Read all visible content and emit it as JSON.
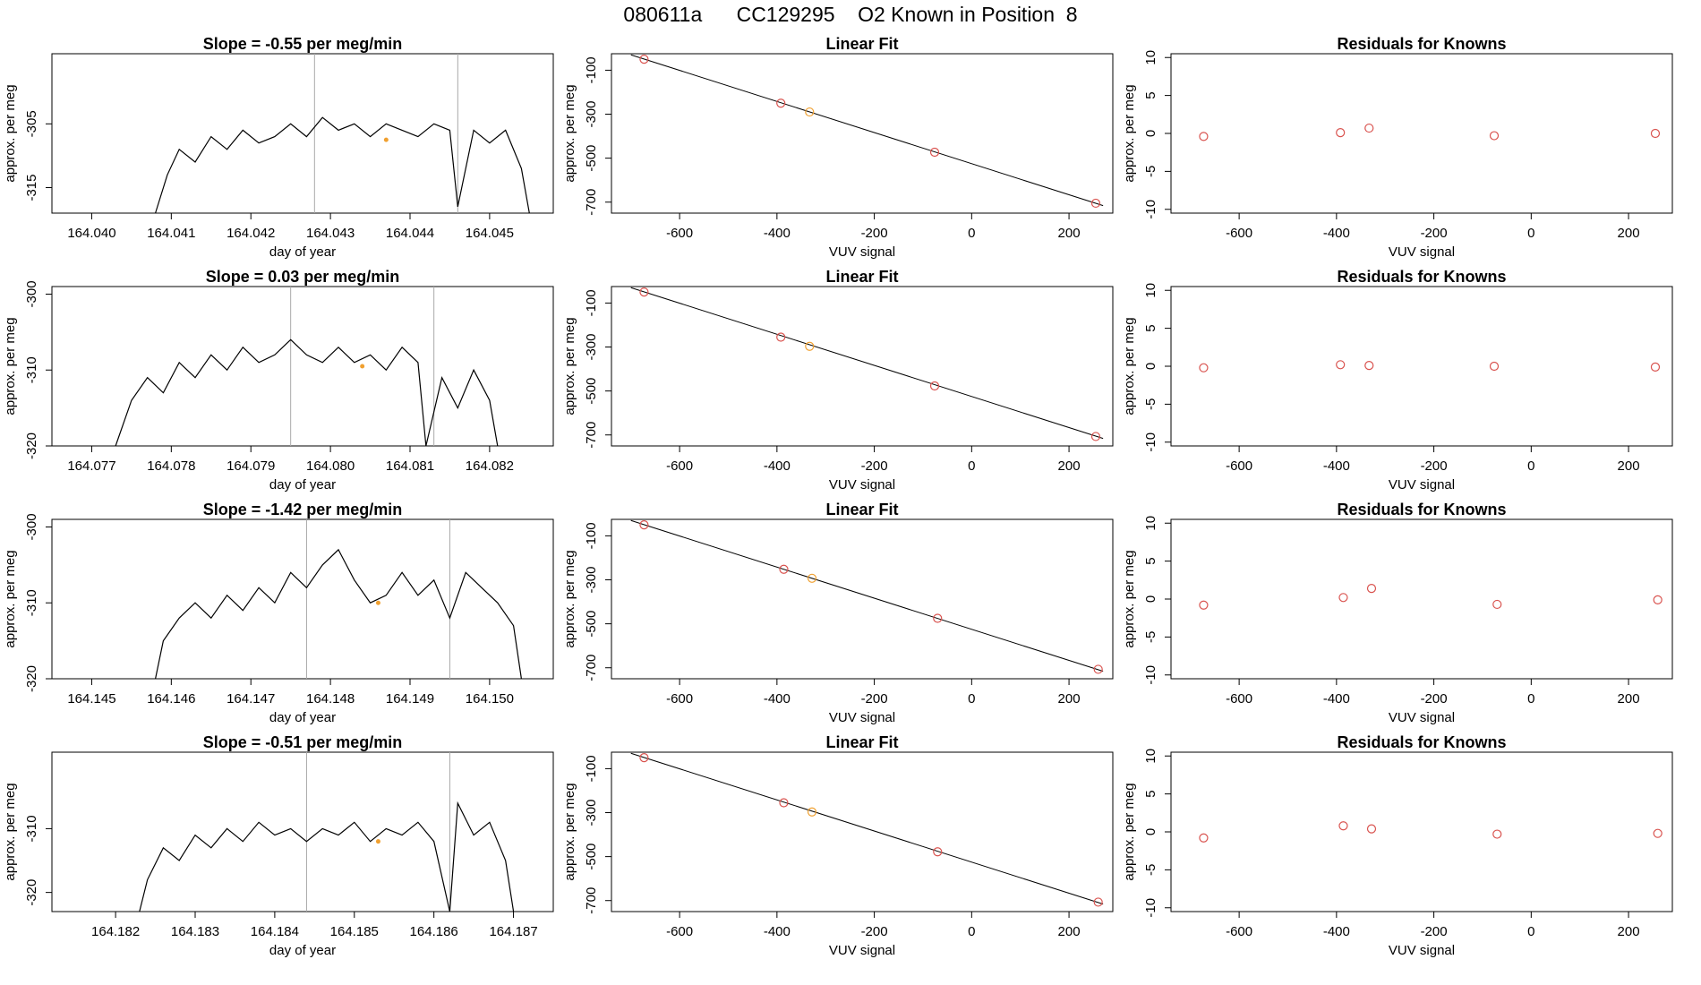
{
  "title": "080611a      CC129295    O2 Known in Position  8",
  "colors": {
    "line": "#000000",
    "frame": "#000000",
    "marker_line": "#aaaaaa",
    "point": "#d9534f",
    "highlight": "#f0a030"
  },
  "chart_data": [
    {
      "type": "line",
      "title": "Slope =  -0.55  per meg/min",
      "xlabel": "day of year",
      "ylabel": "approx. per meg",
      "xlim": [
        164.0395,
        164.0458
      ],
      "ylim": [
        -319,
        -294
      ],
      "xticks": [
        "164.040",
        "164.041",
        "164.042",
        "164.043",
        "164.044",
        "164.045"
      ],
      "yticks": [
        -315,
        -305
      ],
      "vlines": [
        164.0428,
        164.0446
      ],
      "highlight_point": {
        "x": 164.0437,
        "y": -307.5
      },
      "series": [
        {
          "x": [
            164.0408,
            164.04095,
            164.0411,
            164.0413,
            164.0415,
            164.0417,
            164.0419,
            164.0421,
            164.0423,
            164.0425,
            164.0427,
            164.0429,
            164.0431,
            164.0433,
            164.0435,
            164.0437,
            164.0439,
            164.0441,
            164.0443,
            164.0445,
            164.0446,
            164.0448,
            164.045,
            164.0452,
            164.0454,
            164.0455
          ],
          "y": [
            -319,
            -313,
            -309,
            -311,
            -307,
            -309,
            -306,
            -308,
            -307,
            -305,
            -307,
            -304,
            -306,
            -305,
            -307,
            -305,
            -306,
            -307,
            -305,
            -306,
            -318,
            -306,
            -308,
            -306,
            -312,
            -319
          ]
        }
      ]
    },
    {
      "type": "scatter",
      "title": "Linear Fit",
      "xlabel": "VUV signal",
      "ylabel": "approx. per meg",
      "xlim": [
        -740,
        290
      ],
      "ylim": [
        -750,
        -25
      ],
      "xticks": [
        -600,
        -400,
        -200,
        0,
        200
      ],
      "yticks": [
        -100,
        -300,
        -500,
        -700
      ],
      "points": [
        {
          "x": -673,
          "y": -50
        },
        {
          "x": -392,
          "y": -250
        },
        {
          "x": -333,
          "y": -290
        },
        {
          "x": -76,
          "y": -473
        },
        {
          "x": 255,
          "y": -705
        }
      ],
      "highlight_index": 2,
      "fit_line": {
        "x": [
          -700,
          270
        ],
        "y": [
          -30,
          -716
        ]
      }
    },
    {
      "type": "scatter",
      "title": "Residuals for Knowns",
      "xlabel": "VUV signal",
      "ylabel": "approx. per meg",
      "xlim": [
        -740,
        290
      ],
      "ylim": [
        -10.5,
        10.5
      ],
      "xticks": [
        -600,
        -400,
        -200,
        0,
        200
      ],
      "yticks": [
        10,
        5,
        0,
        -5,
        -10
      ],
      "points": [
        {
          "x": -673,
          "y": -0.4
        },
        {
          "x": -392,
          "y": 0.1
        },
        {
          "x": -333,
          "y": 0.7
        },
        {
          "x": -76,
          "y": -0.3
        },
        {
          "x": 255,
          "y": 0.0
        }
      ]
    },
    {
      "type": "line",
      "title": "Slope =  0.03  per meg/min",
      "xlabel": "day of year",
      "ylabel": "approx. per meg",
      "xlim": [
        164.0765,
        164.0828
      ],
      "ylim": [
        -320,
        -299
      ],
      "xticks": [
        "164.077",
        "164.078",
        "164.079",
        "164.080",
        "164.081",
        "164.082"
      ],
      "yticks": [
        -300,
        -310,
        -320
      ],
      "vlines": [
        164.0795,
        164.0813
      ],
      "highlight_point": {
        "x": 164.0804,
        "y": -309.5
      },
      "series": [
        {
          "x": [
            164.0773,
            164.0775,
            164.0777,
            164.0779,
            164.0781,
            164.0783,
            164.0785,
            164.0787,
            164.0789,
            164.0791,
            164.0793,
            164.0795,
            164.0797,
            164.0799,
            164.0801,
            164.0803,
            164.0805,
            164.0807,
            164.0809,
            164.0811,
            164.0812,
            164.0814,
            164.0816,
            164.0818,
            164.082,
            164.0821
          ],
          "y": [
            -320,
            -314,
            -311,
            -313,
            -309,
            -311,
            -308,
            -310,
            -307,
            -309,
            -308,
            -306,
            -308,
            -309,
            -307,
            -309,
            -308,
            -310,
            -307,
            -309,
            -320,
            -311,
            -315,
            -310,
            -314,
            -320
          ]
        }
      ]
    },
    {
      "type": "scatter",
      "title": "Linear Fit",
      "xlabel": "VUV signal",
      "ylabel": "approx. per meg",
      "xlim": [
        -740,
        290
      ],
      "ylim": [
        -750,
        -25
      ],
      "xticks": [
        -600,
        -400,
        -200,
        0,
        200
      ],
      "yticks": [
        -100,
        -300,
        -500,
        -700
      ],
      "points": [
        {
          "x": -673,
          "y": -50
        },
        {
          "x": -392,
          "y": -255
        },
        {
          "x": -333,
          "y": -297
        },
        {
          "x": -76,
          "y": -477
        },
        {
          "x": 255,
          "y": -707
        }
      ],
      "highlight_index": 2,
      "fit_line": {
        "x": [
          -700,
          270
        ],
        "y": [
          -30,
          -716
        ]
      }
    },
    {
      "type": "scatter",
      "title": "Residuals for Knowns",
      "xlabel": "VUV signal",
      "ylabel": "approx. per meg",
      "xlim": [
        -740,
        290
      ],
      "ylim": [
        -10.5,
        10.5
      ],
      "xticks": [
        -600,
        -400,
        -200,
        0,
        200
      ],
      "yticks": [
        10,
        5,
        0,
        -5,
        -10
      ],
      "points": [
        {
          "x": -673,
          "y": -0.2
        },
        {
          "x": -392,
          "y": 0.2
        },
        {
          "x": -333,
          "y": 0.1
        },
        {
          "x": -76,
          "y": 0.0
        },
        {
          "x": 255,
          "y": -0.1
        }
      ]
    },
    {
      "type": "line",
      "title": "Slope =  -1.42  per meg/min",
      "xlabel": "day of year",
      "ylabel": "approx. per meg",
      "xlim": [
        164.1445,
        164.1508
      ],
      "ylim": [
        -320,
        -299
      ],
      "xticks": [
        "164.145",
        "164.146",
        "164.147",
        "164.148",
        "164.149",
        "164.150"
      ],
      "yticks": [
        -300,
        -310,
        -320
      ],
      "vlines": [
        164.1477,
        164.1495
      ],
      "highlight_point": {
        "x": 164.1486,
        "y": -310
      },
      "series": [
        {
          "x": [
            164.1458,
            164.1459,
            164.1461,
            164.1463,
            164.1465,
            164.1467,
            164.1469,
            164.1471,
            164.1473,
            164.1475,
            164.1477,
            164.1479,
            164.1481,
            164.1483,
            164.1485,
            164.1487,
            164.1489,
            164.1491,
            164.1493,
            164.1495,
            164.1497,
            164.1499,
            164.1501,
            164.1503,
            164.1504
          ],
          "y": [
            -320,
            -315,
            -312,
            -310,
            -312,
            -309,
            -311,
            -308,
            -310,
            -306,
            -308,
            -305,
            -303,
            -307,
            -310,
            -309,
            -306,
            -309,
            -307,
            -312,
            -306,
            -308,
            -310,
            -313,
            -320
          ]
        }
      ]
    },
    {
      "type": "scatter",
      "title": "Linear Fit",
      "xlabel": "VUV signal",
      "ylabel": "approx. per meg",
      "xlim": [
        -740,
        290
      ],
      "ylim": [
        -750,
        -25
      ],
      "xticks": [
        -600,
        -400,
        -200,
        0,
        200
      ],
      "yticks": [
        -100,
        -300,
        -500,
        -700
      ],
      "points": [
        {
          "x": -673,
          "y": -50
        },
        {
          "x": -386,
          "y": -252
        },
        {
          "x": -328,
          "y": -293
        },
        {
          "x": -70,
          "y": -475
        },
        {
          "x": 260,
          "y": -707
        }
      ],
      "highlight_index": 2,
      "fit_line": {
        "x": [
          -700,
          270
        ],
        "y": [
          -30,
          -716
        ]
      }
    },
    {
      "type": "scatter",
      "title": "Residuals for Knowns",
      "xlabel": "VUV signal",
      "ylabel": "approx. per meg",
      "xlim": [
        -740,
        290
      ],
      "ylim": [
        -10.5,
        10.5
      ],
      "xticks": [
        -600,
        -400,
        -200,
        0,
        200
      ],
      "yticks": [
        10,
        5,
        0,
        -5,
        -10
      ],
      "points": [
        {
          "x": -673,
          "y": -0.8
        },
        {
          "x": -386,
          "y": 0.2
        },
        {
          "x": -328,
          "y": 1.4
        },
        {
          "x": -70,
          "y": -0.7
        },
        {
          "x": 260,
          "y": -0.1
        }
      ]
    },
    {
      "type": "line",
      "title": "Slope =  -0.51  per meg/min",
      "xlabel": "day of year",
      "ylabel": "approx. per meg",
      "xlim": [
        164.1812,
        164.1875
      ],
      "ylim": [
        -323,
        -298
      ],
      "xticks": [
        "164.182",
        "164.183",
        "164.184",
        "164.185",
        "164.186",
        "164.187"
      ],
      "yticks": [
        -310,
        -320
      ],
      "vlines": [
        164.1844,
        164.1862
      ],
      "highlight_point": {
        "x": 164.1853,
        "y": -312
      },
      "series": [
        {
          "x": [
            164.1823,
            164.1824,
            164.1826,
            164.1828,
            164.183,
            164.1832,
            164.1834,
            164.1836,
            164.1838,
            164.184,
            164.1842,
            164.1844,
            164.1846,
            164.1848,
            164.185,
            164.1852,
            164.1854,
            164.1856,
            164.1858,
            164.186,
            164.1862,
            164.1863,
            164.1865,
            164.1867,
            164.1869,
            164.187
          ],
          "y": [
            -323,
            -318,
            -313,
            -315,
            -311,
            -313,
            -310,
            -312,
            -309,
            -311,
            -310,
            -312,
            -310,
            -311,
            -309,
            -312,
            -310,
            -311,
            -309,
            -312,
            -323,
            -306,
            -311,
            -309,
            -315,
            -323
          ]
        }
      ]
    },
    {
      "type": "scatter",
      "title": "Linear Fit",
      "xlabel": "VUV signal",
      "ylabel": "approx. per meg",
      "xlim": [
        -740,
        290
      ],
      "ylim": [
        -750,
        -25
      ],
      "xticks": [
        -600,
        -400,
        -200,
        0,
        200
      ],
      "yticks": [
        -100,
        -300,
        -500,
        -700
      ],
      "points": [
        {
          "x": -673,
          "y": -50
        },
        {
          "x": -386,
          "y": -255
        },
        {
          "x": -328,
          "y": -297
        },
        {
          "x": -70,
          "y": -478
        },
        {
          "x": 260,
          "y": -707
        }
      ],
      "highlight_index": 2,
      "fit_line": {
        "x": [
          -700,
          270
        ],
        "y": [
          -30,
          -716
        ]
      }
    },
    {
      "type": "scatter",
      "title": "Residuals for Knowns",
      "xlabel": "VUV signal",
      "ylabel": "approx. per meg",
      "xlim": [
        -740,
        290
      ],
      "ylim": [
        -10.5,
        10.5
      ],
      "xticks": [
        -600,
        -400,
        -200,
        0,
        200
      ],
      "yticks": [
        10,
        5,
        0,
        -5,
        -10
      ],
      "points": [
        {
          "x": -673,
          "y": -0.8
        },
        {
          "x": -386,
          "y": 0.8
        },
        {
          "x": -328,
          "y": 0.4
        },
        {
          "x": -70,
          "y": -0.3
        },
        {
          "x": 260,
          "y": -0.2
        }
      ]
    }
  ]
}
